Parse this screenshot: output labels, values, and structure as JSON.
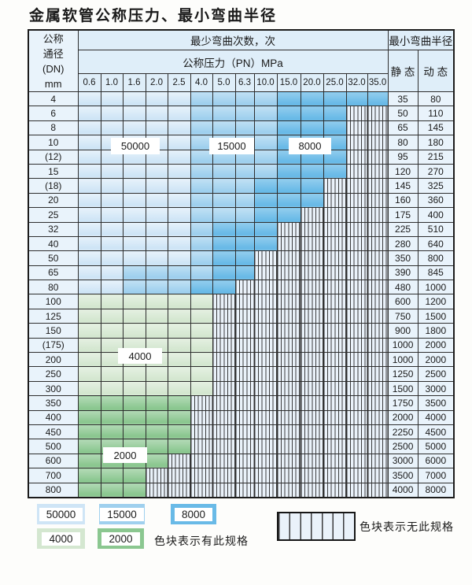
{
  "title": "金属软管公称压力、最小弯曲半径",
  "colors": {
    "c50000": "#cfe5f6",
    "c15000": "#9fd0ee",
    "c8000": "#69bae7",
    "c4000": "#d4e7d0",
    "c2000": "#8bc790",
    "hatchBg": "#eaf2fa",
    "hatchLine": "#3a3b3c",
    "headerBg": "#dfeef9",
    "sideBg": "#e9f3fb"
  },
  "table": {
    "corner_lines": [
      "公称",
      "通径",
      "(DN)",
      "mm"
    ],
    "bend_cycles_header": "最少弯曲次数，次",
    "pressure_header": "公称压力（PN）MPa",
    "radius_header": "最小弯曲半径",
    "static_header": "静 态",
    "dynamic_header": "动 态",
    "pressures": [
      "0.6",
      "1.0",
      "1.6",
      "2.0",
      "2.5",
      "4.0",
      "5.0",
      "6.3",
      "10.0",
      "15.0",
      "20.0",
      "25.0",
      "32.0",
      "35.0"
    ],
    "rows": [
      {
        "dn": "4",
        "cells": [
          "50000",
          "50000",
          "50000",
          "50000",
          "50000",
          "15000",
          "15000",
          "15000",
          "15000",
          "8000",
          "8000",
          "8000",
          "8000",
          "8000"
        ],
        "static": "35",
        "dynamic": "80"
      },
      {
        "dn": "6",
        "cells": [
          "50000",
          "50000",
          "50000",
          "50000",
          "50000",
          "15000",
          "15000",
          "15000",
          "15000",
          "8000",
          "8000",
          "8000",
          "none",
          "none"
        ],
        "static": "50",
        "dynamic": "110"
      },
      {
        "dn": "8",
        "cells": [
          "50000",
          "50000",
          "50000",
          "50000",
          "50000",
          "15000",
          "15000",
          "15000",
          "15000",
          "8000",
          "8000",
          "8000",
          "none",
          "none"
        ],
        "static": "65",
        "dynamic": "145"
      },
      {
        "dn": "10",
        "cells": [
          "50000",
          "50000",
          "50000",
          "50000",
          "50000",
          "15000",
          "15000",
          "15000",
          "15000",
          "8000",
          "8000",
          "8000",
          "none",
          "none"
        ],
        "static": "80",
        "dynamic": "180"
      },
      {
        "dn": "(12)",
        "cells": [
          "50000",
          "50000",
          "50000",
          "50000",
          "50000",
          "15000",
          "15000",
          "15000",
          "15000",
          "8000",
          "8000",
          "8000",
          "none",
          "none"
        ],
        "static": "95",
        "dynamic": "215"
      },
      {
        "dn": "15",
        "cells": [
          "50000",
          "50000",
          "50000",
          "50000",
          "50000",
          "15000",
          "15000",
          "15000",
          "15000",
          "8000",
          "8000",
          "8000",
          "none",
          "none"
        ],
        "static": "120",
        "dynamic": "270"
      },
      {
        "dn": "(18)",
        "cells": [
          "50000",
          "50000",
          "50000",
          "50000",
          "50000",
          "15000",
          "15000",
          "15000",
          "8000",
          "8000",
          "8000",
          "none",
          "none",
          "none"
        ],
        "static": "145",
        "dynamic": "325"
      },
      {
        "dn": "20",
        "cells": [
          "50000",
          "50000",
          "50000",
          "50000",
          "50000",
          "15000",
          "15000",
          "15000",
          "8000",
          "8000",
          "8000",
          "none",
          "none",
          "none"
        ],
        "static": "160",
        "dynamic": "360"
      },
      {
        "dn": "25",
        "cells": [
          "50000",
          "50000",
          "50000",
          "50000",
          "50000",
          "15000",
          "15000",
          "15000",
          "8000",
          "8000",
          "none",
          "none",
          "none",
          "none"
        ],
        "static": "175",
        "dynamic": "400"
      },
      {
        "dn": "32",
        "cells": [
          "50000",
          "50000",
          "50000",
          "50000",
          "50000",
          "15000",
          "8000",
          "8000",
          "8000",
          "none",
          "none",
          "none",
          "none",
          "none"
        ],
        "static": "225",
        "dynamic": "510"
      },
      {
        "dn": "40",
        "cells": [
          "50000",
          "50000",
          "50000",
          "50000",
          "50000",
          "15000",
          "8000",
          "8000",
          "8000",
          "none",
          "none",
          "none",
          "none",
          "none"
        ],
        "static": "280",
        "dynamic": "640"
      },
      {
        "dn": "50",
        "cells": [
          "50000",
          "50000",
          "50000",
          "50000",
          "50000",
          "15000",
          "8000",
          "8000",
          "none",
          "none",
          "none",
          "none",
          "none",
          "none"
        ],
        "static": "350",
        "dynamic": "800"
      },
      {
        "dn": "65",
        "cells": [
          "50000",
          "50000",
          "15000",
          "15000",
          "15000",
          "15000",
          "8000",
          "8000",
          "none",
          "none",
          "none",
          "none",
          "none",
          "none"
        ],
        "static": "390",
        "dynamic": "845"
      },
      {
        "dn": "80",
        "cells": [
          "50000",
          "50000",
          "15000",
          "15000",
          "15000",
          "8000",
          "8000",
          "none",
          "none",
          "none",
          "none",
          "none",
          "none",
          "none"
        ],
        "static": "480",
        "dynamic": "1000"
      },
      {
        "dn": "100",
        "cells": [
          "4000",
          "4000",
          "4000",
          "4000",
          "4000",
          "4000",
          "none",
          "none",
          "none",
          "none",
          "none",
          "none",
          "none",
          "none"
        ],
        "static": "600",
        "dynamic": "1200"
      },
      {
        "dn": "125",
        "cells": [
          "4000",
          "4000",
          "4000",
          "4000",
          "4000",
          "4000",
          "none",
          "none",
          "none",
          "none",
          "none",
          "none",
          "none",
          "none"
        ],
        "static": "750",
        "dynamic": "1500"
      },
      {
        "dn": "150",
        "cells": [
          "4000",
          "4000",
          "4000",
          "4000",
          "4000",
          "4000",
          "none",
          "none",
          "none",
          "none",
          "none",
          "none",
          "none",
          "none"
        ],
        "static": "900",
        "dynamic": "1800"
      },
      {
        "dn": "(175)",
        "cells": [
          "4000",
          "4000",
          "4000",
          "4000",
          "4000",
          "4000",
          "none",
          "none",
          "none",
          "none",
          "none",
          "none",
          "none",
          "none"
        ],
        "static": "1000",
        "dynamic": "2000"
      },
      {
        "dn": "200",
        "cells": [
          "4000",
          "4000",
          "4000",
          "4000",
          "4000",
          "4000",
          "none",
          "none",
          "none",
          "none",
          "none",
          "none",
          "none",
          "none"
        ],
        "static": "1000",
        "dynamic": "2000"
      },
      {
        "dn": "250",
        "cells": [
          "4000",
          "4000",
          "4000",
          "4000",
          "4000",
          "4000",
          "none",
          "none",
          "none",
          "none",
          "none",
          "none",
          "none",
          "none"
        ],
        "static": "1250",
        "dynamic": "2500"
      },
      {
        "dn": "300",
        "cells": [
          "4000",
          "4000",
          "4000",
          "4000",
          "4000",
          "4000",
          "none",
          "none",
          "none",
          "none",
          "none",
          "none",
          "none",
          "none"
        ],
        "static": "1500",
        "dynamic": "3000"
      },
      {
        "dn": "350",
        "cells": [
          "2000",
          "2000",
          "2000",
          "2000",
          "2000",
          "none",
          "none",
          "none",
          "none",
          "none",
          "none",
          "none",
          "none",
          "none"
        ],
        "static": "1750",
        "dynamic": "3500"
      },
      {
        "dn": "400",
        "cells": [
          "2000",
          "2000",
          "2000",
          "2000",
          "2000",
          "none",
          "none",
          "none",
          "none",
          "none",
          "none",
          "none",
          "none",
          "none"
        ],
        "static": "2000",
        "dynamic": "4000"
      },
      {
        "dn": "450",
        "cells": [
          "2000",
          "2000",
          "2000",
          "2000",
          "2000",
          "none",
          "none",
          "none",
          "none",
          "none",
          "none",
          "none",
          "none",
          "none"
        ],
        "static": "2250",
        "dynamic": "4500"
      },
      {
        "dn": "500",
        "cells": [
          "2000",
          "2000",
          "2000",
          "2000",
          "2000",
          "none",
          "none",
          "none",
          "none",
          "none",
          "none",
          "none",
          "none",
          "none"
        ],
        "static": "2500",
        "dynamic": "5000"
      },
      {
        "dn": "600",
        "cells": [
          "2000",
          "2000",
          "2000",
          "2000",
          "none",
          "none",
          "none",
          "none",
          "none",
          "none",
          "none",
          "none",
          "none",
          "none"
        ],
        "static": "3000",
        "dynamic": "6000"
      },
      {
        "dn": "700",
        "cells": [
          "2000",
          "2000",
          "2000",
          "none",
          "none",
          "none",
          "none",
          "none",
          "none",
          "none",
          "none",
          "none",
          "none",
          "none"
        ],
        "static": "3500",
        "dynamic": "7000"
      },
      {
        "dn": "800",
        "cells": [
          "2000",
          "2000",
          "2000",
          "none",
          "none",
          "none",
          "none",
          "none",
          "none",
          "none",
          "none",
          "none",
          "none",
          "none"
        ],
        "static": "4000",
        "dynamic": "8000"
      }
    ]
  },
  "overlay_labels": {
    "blue_50000": "50000",
    "blue_15000": "15000",
    "blue_8000": "8000",
    "green_4000": "4000",
    "green_2000": "2000"
  },
  "legend": {
    "blocks": [
      {
        "label": "50000"
      },
      {
        "label": "15000"
      },
      {
        "label": "8000"
      },
      {
        "label": "4000"
      },
      {
        "label": "2000"
      }
    ],
    "has_spec_text": "色块表示有此规格",
    "no_spec_text": "色块表示无此规格"
  }
}
